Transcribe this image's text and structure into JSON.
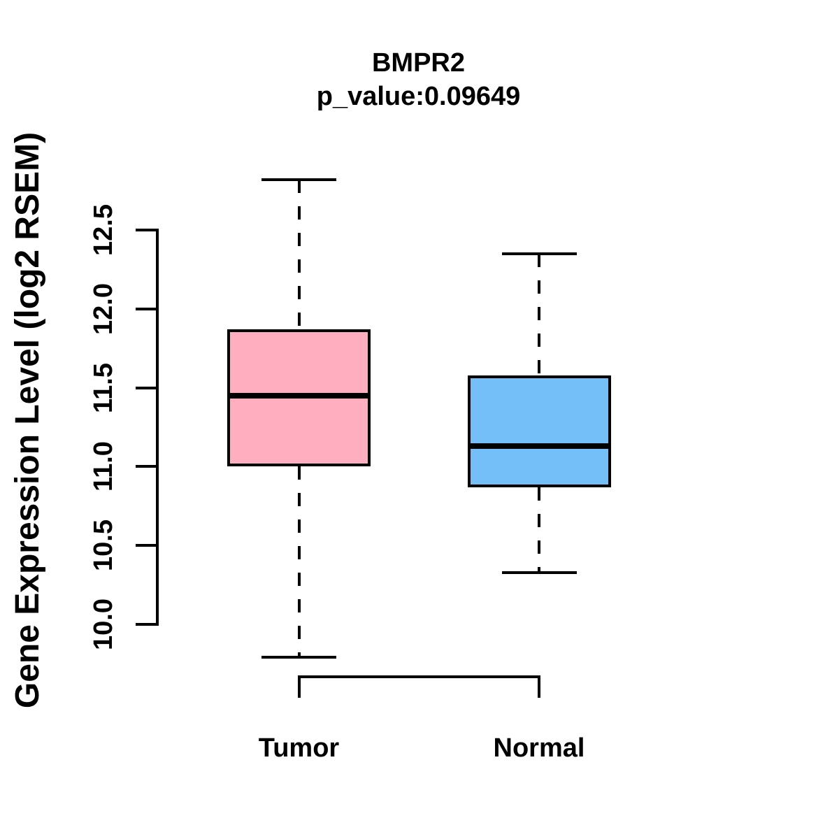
{
  "figure": {
    "title": "BMPR2",
    "subtitle": "p_value:0.09649"
  },
  "chart_data": {
    "type": "boxplot",
    "title": "BMPR2",
    "subtitle": "p_value:0.09649",
    "ylabel": "Gene Expression Level (log2 RSEM)",
    "xlabel": "",
    "categories": [
      "Tumor",
      "Normal"
    ],
    "ylim": [
      10.0,
      12.5
    ],
    "yticks": [
      "10.0",
      "10.5",
      "11.0",
      "11.5",
      "12.0",
      "12.5"
    ],
    "grid": false,
    "legend": false,
    "series": [
      {
        "name": "Tumor",
        "fill_color": "#FFAEC0",
        "whisker_low": 9.79,
        "q1": 11.0,
        "median": 11.45,
        "q3": 11.87,
        "whisker_high": 12.82
      },
      {
        "name": "Normal",
        "fill_color": "#74BFF7",
        "whisker_low": 10.33,
        "q1": 10.87,
        "median": 11.13,
        "q3": 11.58,
        "whisker_high": 12.35
      }
    ],
    "colors": {
      "box_border": "#000000",
      "median_line": "#000000",
      "axis": "#000000",
      "background": "#FFFFFF"
    }
  }
}
